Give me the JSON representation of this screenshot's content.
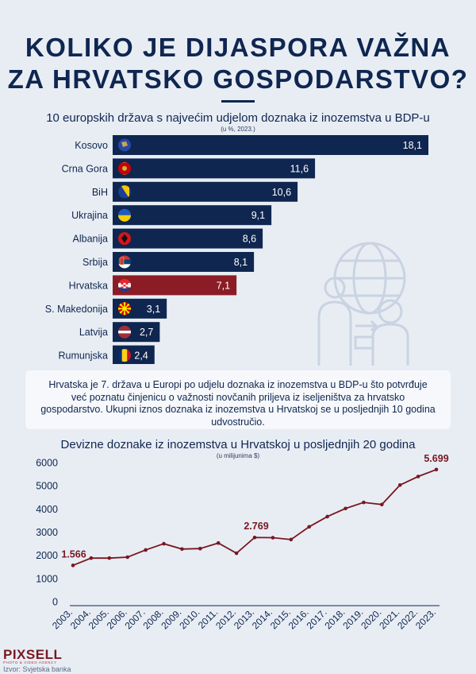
{
  "title_line1": "KOLIKO JE DIJASPORA VAŽNA",
  "title_line2": "ZA HRVATSKO GOSPODARSTVO?",
  "note": "Hrvatska je 7. država u Europi po udjelu doznaka iz inozemstva u BDP-u što potvrđuje već poznatu činjenicu o važnosti novčanih priljeva iz iseljeništva za hrvatsko gospodarstvo. Ukupni iznos doznaka iz inozemstva u Hrvatskoj se u posljednjih 10 godina udvostručio.",
  "logo": "PIXSELL",
  "logo_sub": "PHOTO & VIDEO AGENCY",
  "source": "Izvor: Svjetska banka",
  "colors": {
    "navy": "#0f2650",
    "highlight": "#8b1c25",
    "background": "#e8edf4",
    "line": "#7a1720"
  },
  "icon_background": "people-globe-icon",
  "chart_data": [
    {
      "type": "bar",
      "orientation": "horizontal",
      "title": "10 europskih država s najvećim udjelom doznaka iz inozemstva u BDP-u",
      "subtitle": "(u %, 2023.)",
      "categories": [
        "Kosovo",
        "Crna Gora",
        "BiH",
        "Ukrajina",
        "Albanija",
        "Srbija",
        "Hrvatska",
        "S. Makedonija",
        "Latvija",
        "Rumunjska"
      ],
      "labels": [
        "18,1",
        "11,6",
        "10,6",
        "9,1",
        "8,6",
        "8,1",
        "7,1",
        "3,1",
        "2,7",
        "2,4"
      ],
      "values": [
        18.1,
        11.6,
        10.6,
        9.1,
        8.6,
        8.1,
        7.1,
        3.1,
        2.7,
        2.4
      ],
      "highlight": "Hrvatska",
      "flags": [
        "flag-kosovo-icon",
        "flag-montenegro-icon",
        "flag-bih-icon",
        "flag-ukraine-icon",
        "flag-albania-icon",
        "flag-serbia-icon",
        "flag-croatia-icon",
        "flag-north-macedonia-icon",
        "flag-latvia-icon",
        "flag-romania-icon"
      ],
      "xlim": [
        0,
        18.1
      ],
      "grid": false
    },
    {
      "type": "line",
      "title": "Devizne doznake iz inozemstva u Hrvatskoj u posljednjih 20 godina",
      "subtitle": "(u milijunima $)",
      "x": [
        "2003.",
        "2004.",
        "2005.",
        "2006.",
        "2007.",
        "2008.",
        "2009.",
        "2010.",
        "2011.",
        "2012.",
        "2013.",
        "2014.",
        "2015.",
        "2016.",
        "2017.",
        "2018.",
        "2019.",
        "2020.",
        "2021.",
        "2022.",
        "2023."
      ],
      "values": [
        1566,
        1880,
        1880,
        1920,
        2230,
        2500,
        2270,
        2290,
        2530,
        2090,
        2769,
        2760,
        2680,
        3230,
        3670,
        4020,
        4280,
        4190,
        5030,
        5400,
        5699
      ],
      "annotations": [
        {
          "x": "2003.",
          "label": "1.566"
        },
        {
          "x": "2013.",
          "label": "2.769"
        },
        {
          "x": "2023.",
          "label": "5.699"
        }
      ],
      "yticks": [
        0,
        1000,
        2000,
        3000,
        4000,
        5000,
        6000
      ],
      "ylim": [
        0,
        6000
      ],
      "grid": false
    }
  ]
}
